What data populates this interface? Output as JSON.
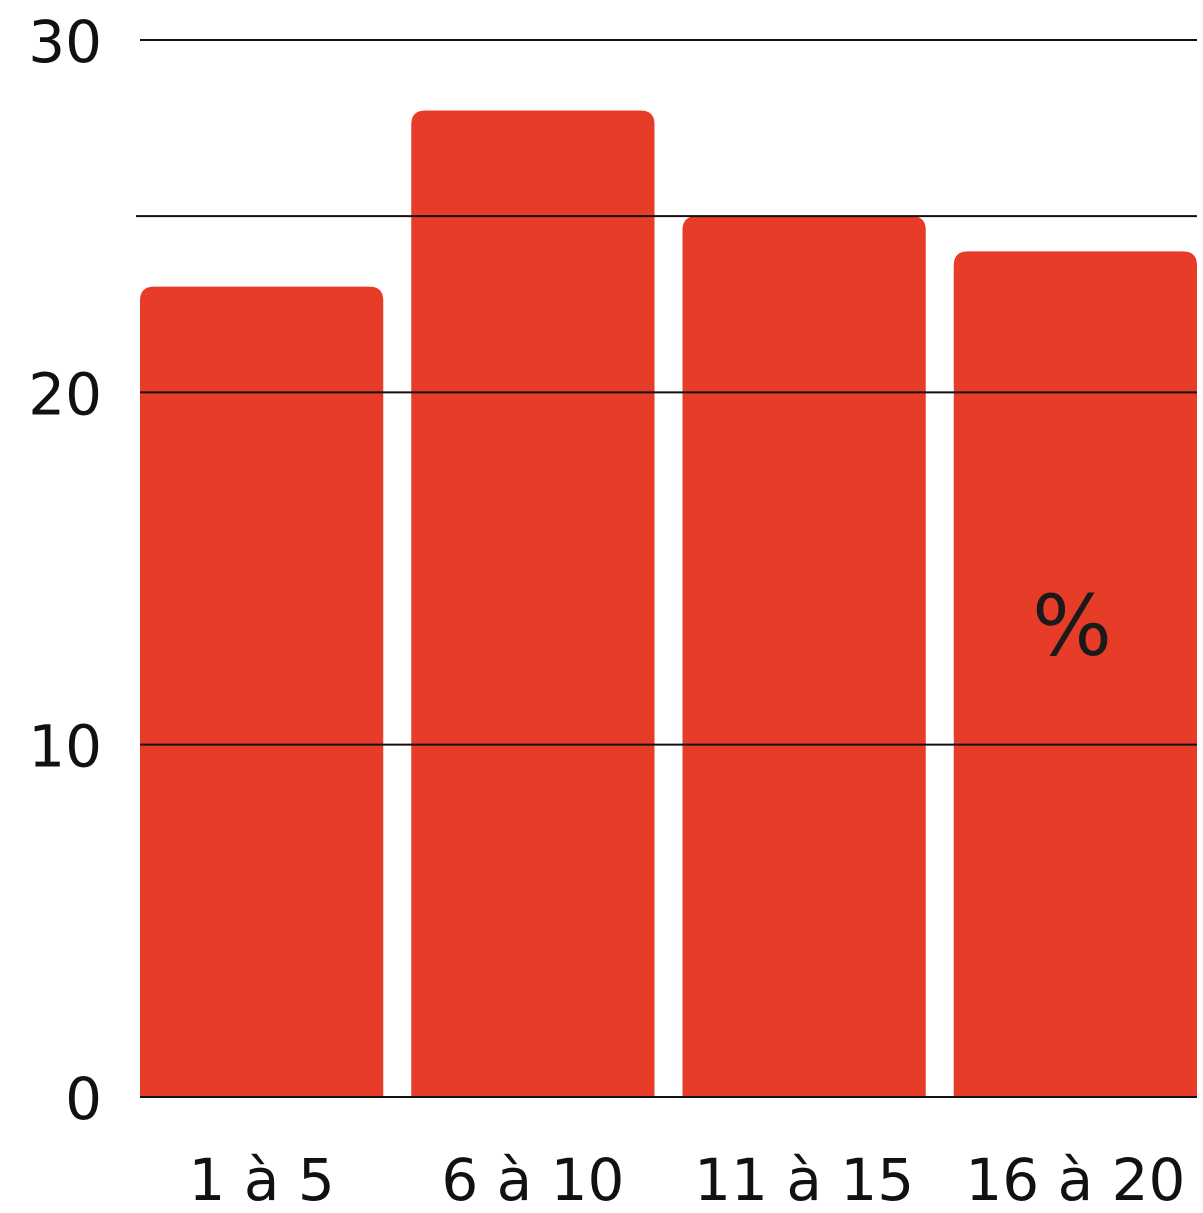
{
  "chart_data": {
    "type": "bar",
    "categories": [
      "1 à 5",
      "6 à 10",
      "11 à 15",
      "16 à 20"
    ],
    "values": [
      23,
      28,
      25,
      24
    ],
    "ylim": [
      0,
      30
    ],
    "yticks": [
      0,
      10,
      20,
      30
    ],
    "unit": "%",
    "grid": true,
    "colors": {
      "bar": "#e63c28",
      "grid": "#111111",
      "text": "#111111"
    }
  }
}
